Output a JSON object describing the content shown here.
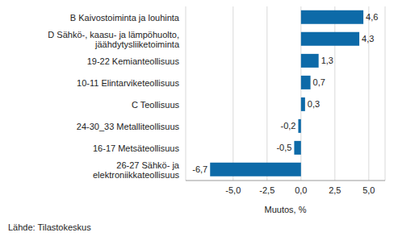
{
  "chart_data": {
    "type": "bar",
    "orientation": "horizontal",
    "categories": [
      "B Kaivostoiminta ja louhinta",
      "D Sähkö-, kaasu- ja lämpöhuolto, jäähdytysliiketoiminta",
      "19-22 Kemianteollisuus",
      "10-11 Elintarviketeollisuus",
      "C Teollisuus",
      "24-30_33 Metalliteollisuus",
      "16-17 Metsäteollisuus",
      "26-27 Sähkö- ja elektroniikkateollisuus"
    ],
    "values": [
      4.6,
      4.3,
      1.3,
      0.7,
      0.3,
      -0.2,
      -0.5,
      -6.7
    ],
    "value_labels": [
      "4,6",
      "4,3",
      "1,3",
      "0,7",
      "0,3",
      "-0,2",
      "-0,5",
      "-6,7"
    ],
    "color": "#0d6aa8",
    "xlim": [
      -8.5,
      6.2
    ],
    "xticks": [
      {
        "value": -5,
        "label": "-5,0"
      },
      {
        "value": -2.5,
        "label": "-2,5"
      },
      {
        "value": 0,
        "label": "0,0"
      },
      {
        "value": 2.5,
        "label": "2,5"
      },
      {
        "value": 5,
        "label": "5,0"
      }
    ],
    "x_label": "Muutos, %",
    "annotations": [
      "Lähde: Tilastokeskus"
    ],
    "grid": true,
    "data_labels": true
  }
}
